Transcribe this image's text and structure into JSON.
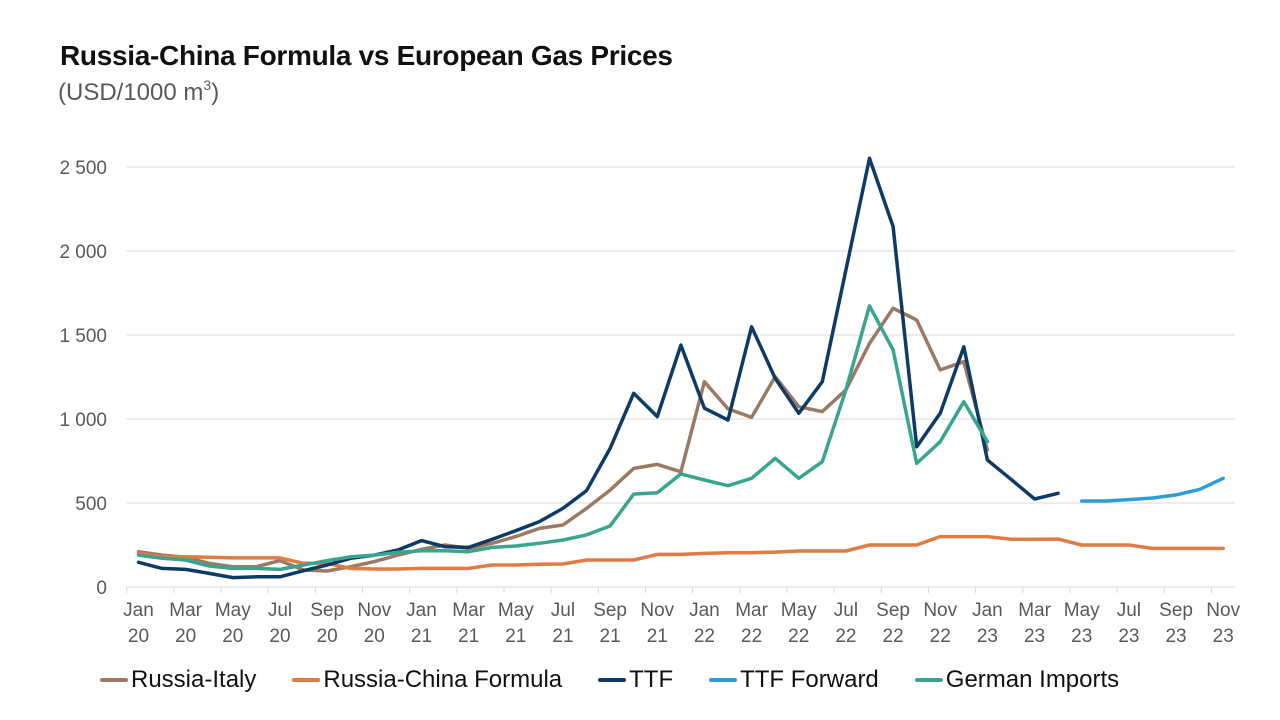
{
  "header": {
    "title": "Russia-China Formula vs European Gas Prices",
    "subtitle_prefix": "(USD/1000 m",
    "subtitle_sup": "3",
    "subtitle_suffix": ")"
  },
  "chart_data": {
    "type": "line",
    "title": "Russia-China Formula vs European Gas Prices",
    "subtitle": "(USD/1000 m³)",
    "xlabel": "",
    "ylabel": "USD/1000 m³",
    "ylim": [
      0,
      2500
    ],
    "yticks": [
      0,
      500,
      1000,
      1500,
      2000,
      2500
    ],
    "ytick_labels": [
      "0",
      "500",
      "1 000",
      "1 500",
      "2 000",
      "2 500"
    ],
    "grid": "horizontal",
    "legend_position": "bottom",
    "x": [
      "Jan 20",
      "Feb 20",
      "Mar 20",
      "Apr 20",
      "May 20",
      "Jun 20",
      "Jul 20",
      "Aug 20",
      "Sep 20",
      "Oct 20",
      "Nov 20",
      "Dec 20",
      "Jan 21",
      "Feb 21",
      "Mar 21",
      "Apr 21",
      "May 21",
      "Jun 21",
      "Jul 21",
      "Aug 21",
      "Sep 21",
      "Oct 21",
      "Nov 21",
      "Dec 21",
      "Jan 22",
      "Feb 22",
      "Mar 22",
      "Apr 22",
      "May 22",
      "Jun 22",
      "Jul 22",
      "Aug 22",
      "Sep 22",
      "Oct 22",
      "Nov 22",
      "Dec 22",
      "Jan 23",
      "Feb 23",
      "Mar 23",
      "Apr 23",
      "May 23",
      "Jun 23",
      "Jul 23",
      "Aug 23",
      "Sep 23",
      "Oct 23",
      "Nov 23"
    ],
    "xtick_labels": [
      {
        "index": 0,
        "month": "Jan",
        "year": "20"
      },
      {
        "index": 2,
        "month": "Mar",
        "year": "20"
      },
      {
        "index": 4,
        "month": "May",
        "year": "20"
      },
      {
        "index": 6,
        "month": "Jul",
        "year": "20"
      },
      {
        "index": 8,
        "month": "Sep",
        "year": "20"
      },
      {
        "index": 10,
        "month": "Nov",
        "year": "20"
      },
      {
        "index": 12,
        "month": "Jan",
        "year": "21"
      },
      {
        "index": 14,
        "month": "Mar",
        "year": "21"
      },
      {
        "index": 16,
        "month": "May",
        "year": "21"
      },
      {
        "index": 18,
        "month": "Jul",
        "year": "21"
      },
      {
        "index": 20,
        "month": "Sep",
        "year": "21"
      },
      {
        "index": 22,
        "month": "Nov",
        "year": "21"
      },
      {
        "index": 24,
        "month": "Jan",
        "year": "22"
      },
      {
        "index": 26,
        "month": "Mar",
        "year": "22"
      },
      {
        "index": 28,
        "month": "May",
        "year": "22"
      },
      {
        "index": 30,
        "month": "Jul",
        "year": "22"
      },
      {
        "index": 32,
        "month": "Sep",
        "year": "22"
      },
      {
        "index": 34,
        "month": "Nov",
        "year": "22"
      },
      {
        "index": 36,
        "month": "Jan",
        "year": "23"
      },
      {
        "index": 38,
        "month": "Mar",
        "year": "23"
      },
      {
        "index": 40,
        "month": "May",
        "year": "23"
      },
      {
        "index": 42,
        "month": "Jul",
        "year": "23"
      },
      {
        "index": 44,
        "month": "Sep",
        "year": "23"
      },
      {
        "index": 46,
        "month": "Nov",
        "year": "23"
      }
    ],
    "series": [
      {
        "name": "Russia-Italy",
        "color": "#9c7a62",
        "values": [
          210,
          190,
          177,
          141,
          121,
          121,
          157,
          101,
          95,
          121,
          151,
          190,
          224,
          250,
          230,
          260,
          300,
          349,
          369,
          468,
          577,
          706,
          730,
          686,
          1222,
          1060,
          1010,
          1252,
          1073,
          1044,
          1173,
          1450,
          1659,
          1589,
          1292,
          1341,
          815,
          null,
          null,
          null,
          null,
          null,
          null,
          null,
          null,
          null,
          null
        ]
      },
      {
        "name": "Russia-China Formula",
        "color": "#e07b45",
        "values": [
          200,
          180,
          180,
          177,
          173,
          173,
          173,
          141,
          141,
          111,
          107,
          107,
          111,
          111,
          111,
          131,
          131,
          135,
          137,
          161,
          161,
          161,
          194,
          194,
          200,
          204,
          204,
          208,
          214,
          214,
          214,
          250,
          250,
          250,
          300,
          300,
          300,
          284,
          284,
          285,
          250,
          250,
          250,
          230,
          230,
          230,
          230
        ]
      },
      {
        "name": "TTF",
        "color": "#0d3b66",
        "values": [
          147,
          111,
          105,
          81,
          56,
          61,
          61,
          97,
          131,
          171,
          190,
          220,
          276,
          240,
          236,
          284,
          335,
          389,
          468,
          573,
          825,
          1153,
          1014,
          1440,
          1064,
          994,
          1549,
          1242,
          1034,
          1222,
          1887,
          2552,
          2145,
          835,
          1034,
          1430,
          756,
          641,
          524,
          558,
          null,
          null,
          null,
          null,
          null,
          null,
          null
        ]
      },
      {
        "name": "TTF Forward",
        "color": "#2e9fd6",
        "values": [
          null,
          null,
          null,
          null,
          null,
          null,
          null,
          null,
          null,
          null,
          null,
          null,
          null,
          null,
          null,
          null,
          null,
          null,
          null,
          null,
          null,
          null,
          null,
          null,
          null,
          null,
          null,
          null,
          null,
          null,
          null,
          null,
          null,
          null,
          null,
          null,
          null,
          null,
          null,
          null,
          512,
          512,
          520,
          530,
          548,
          581,
          647
        ]
      },
      {
        "name": "German Imports",
        "color": "#3aa58f",
        "values": [
          190,
          171,
          161,
          125,
          111,
          111,
          105,
          131,
          157,
          180,
          190,
          206,
          216,
          216,
          210,
          236,
          244,
          260,
          280,
          310,
          363,
          553,
          561,
          673,
          637,
          603,
          647,
          766,
          647,
          746,
          1173,
          1673,
          1411,
          736,
          865,
          1103,
          865,
          null,
          null,
          null,
          null,
          null,
          null,
          null,
          null,
          null,
          null
        ]
      }
    ]
  },
  "legend": {
    "items": [
      {
        "label": "Russia-Italy",
        "color": "#9c7a62"
      },
      {
        "label": "Russia-China Formula",
        "color": "#e07b45"
      },
      {
        "label": "TTF",
        "color": "#0d3b66"
      },
      {
        "label": "TTF Forward",
        "color": "#2e9fd6"
      },
      {
        "label": "German Imports",
        "color": "#3aa58f"
      }
    ]
  }
}
